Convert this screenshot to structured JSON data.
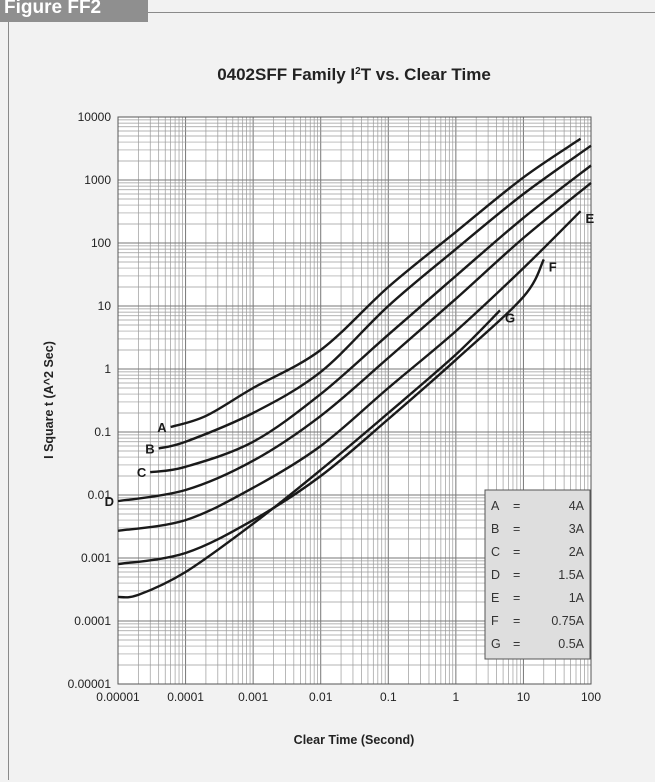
{
  "figure_label": "Figure FF2",
  "chart_data": {
    "type": "line",
    "title": "0402SFF Family I²T vs. Clear Time",
    "title_parts": {
      "pre": "0402SFF Family I",
      "sup": "2",
      "post": "T vs. Clear Time"
    },
    "xlabel": "Clear Time (Second)",
    "ylabel": "I Square t (A^2 Sec)",
    "x_scale": "log",
    "y_scale": "log",
    "xlim": [
      1e-05,
      100
    ],
    "ylim": [
      1e-05,
      10000
    ],
    "grid": true,
    "x_tick_labels": [
      "0.00001",
      "0.0001",
      "0.001",
      "0.01",
      "0.1",
      "1",
      "10",
      "100"
    ],
    "y_tick_labels": [
      "0.00001",
      "0.0001",
      "0.001",
      "0.01",
      "0.1",
      "1",
      "10",
      "100",
      "1000",
      "10000"
    ],
    "legend_position": "bottom-right",
    "legend": [
      {
        "key": "A",
        "eq": "=",
        "value": "4A"
      },
      {
        "key": "B",
        "eq": "=",
        "value": "3A"
      },
      {
        "key": "C",
        "eq": "=",
        "value": "2A"
      },
      {
        "key": "D",
        "eq": "=",
        "value": "1.5A"
      },
      {
        "key": "E",
        "eq": "=",
        "value": "1A"
      },
      {
        "key": "F",
        "eq": "=",
        "value": "0.75A"
      },
      {
        "key": "G",
        "eq": "=",
        "value": "0.5A"
      }
    ],
    "series": [
      {
        "name": "A",
        "x": [
          6e-05,
          0.0002,
          0.001,
          0.01,
          0.1,
          1,
          10,
          70
        ],
        "y": [
          0.12,
          0.18,
          0.5,
          2,
          20,
          150,
          1100,
          4500
        ]
      },
      {
        "name": "B",
        "x": [
          4e-05,
          0.0001,
          0.001,
          0.01,
          0.1,
          1,
          10,
          100
        ],
        "y": [
          0.055,
          0.07,
          0.2,
          0.9,
          10,
          80,
          600,
          3500
        ]
      },
      {
        "name": "C",
        "x": [
          3e-05,
          0.0001,
          0.001,
          0.01,
          0.1,
          1,
          10,
          100
        ],
        "y": [
          0.023,
          0.028,
          0.07,
          0.4,
          3.5,
          30,
          250,
          1700
        ]
      },
      {
        "name": "D",
        "x": [
          1e-05,
          0.0001,
          0.001,
          0.01,
          0.1,
          1,
          10,
          100
        ],
        "y": [
          0.008,
          0.012,
          0.035,
          0.18,
          1.5,
          13,
          120,
          900
        ]
      },
      {
        "name": "E",
        "x": [
          1e-05,
          0.0001,
          0.001,
          0.01,
          0.1,
          1,
          10,
          70
        ],
        "y": [
          0.0027,
          0.004,
          0.013,
          0.06,
          0.5,
          4,
          40,
          320
        ]
      },
      {
        "name": "F",
        "x": [
          1e-05,
          0.0001,
          0.001,
          0.01,
          0.1,
          1,
          10,
          20
        ],
        "y": [
          0.0008,
          0.0012,
          0.004,
          0.02,
          0.16,
          1.4,
          14,
          55
        ]
      },
      {
        "name": "G",
        "x": [
          1e-05,
          2e-05,
          0.0001,
          0.001,
          0.01,
          0.1,
          1,
          4.5
        ],
        "y": [
          0.00024,
          0.00026,
          0.0006,
          0.0035,
          0.025,
          0.2,
          1.7,
          8.5
        ]
      }
    ]
  }
}
